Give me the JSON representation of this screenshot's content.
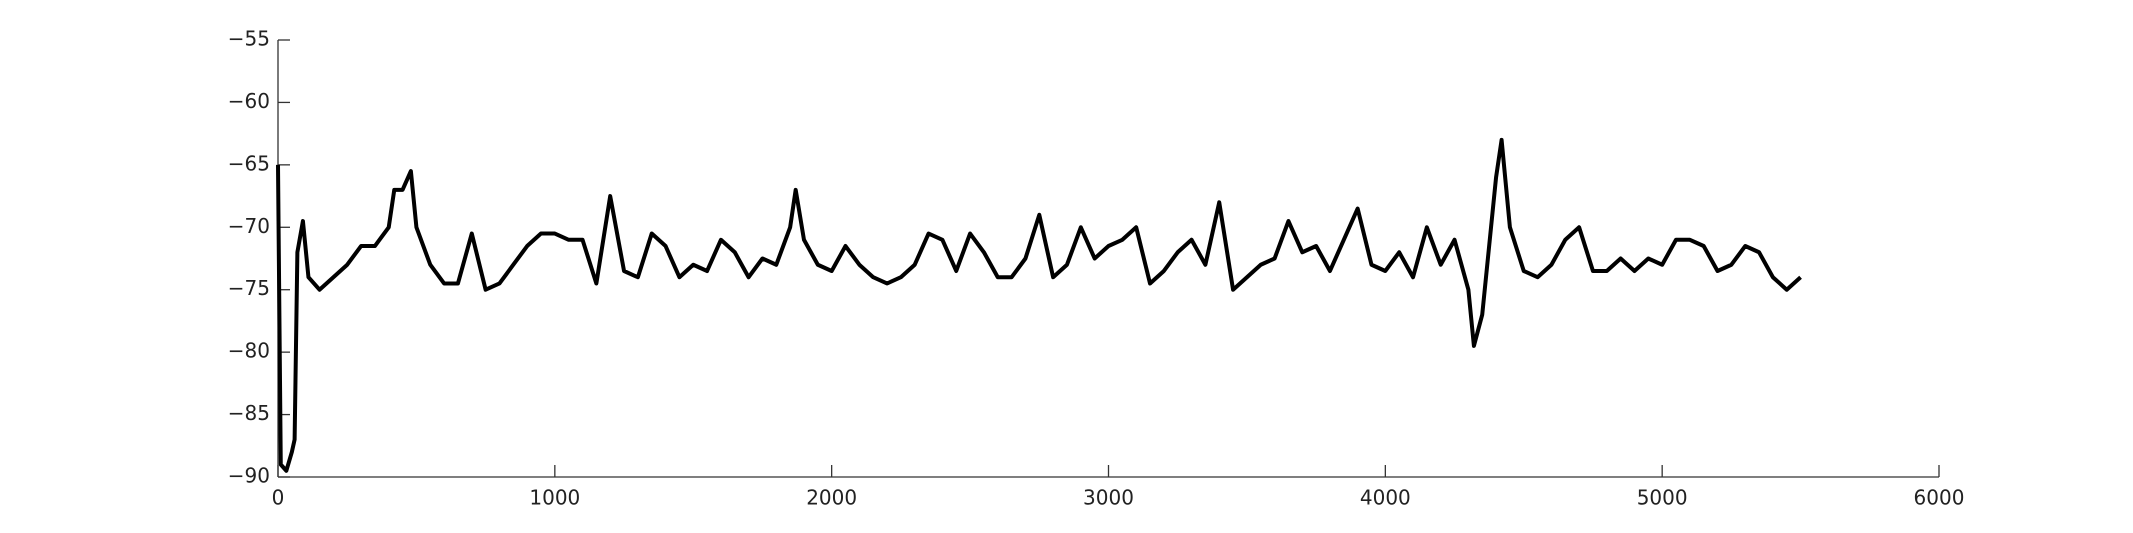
{
  "chart_data": {
    "type": "line",
    "x": [
      0,
      10,
      30,
      50,
      60,
      70,
      90,
      110,
      150,
      200,
      250,
      300,
      350,
      400,
      420,
      450,
      480,
      500,
      550,
      600,
      650,
      700,
      750,
      800,
      850,
      900,
      950,
      1000,
      1050,
      1100,
      1150,
      1200,
      1250,
      1300,
      1350,
      1400,
      1450,
      1500,
      1550,
      1600,
      1650,
      1700,
      1750,
      1800,
      1850,
      1870,
      1900,
      1950,
      2000,
      2050,
      2100,
      2150,
      2200,
      2250,
      2300,
      2350,
      2400,
      2450,
      2500,
      2550,
      2600,
      2650,
      2700,
      2750,
      2800,
      2850,
      2900,
      2950,
      3000,
      3050,
      3100,
      3150,
      3200,
      3250,
      3300,
      3350,
      3400,
      3450,
      3500,
      3550,
      3600,
      3650,
      3700,
      3750,
      3800,
      3850,
      3900,
      3950,
      4000,
      4050,
      4100,
      4150,
      4200,
      4250,
      4300,
      4320,
      4350,
      4400,
      4420,
      4450,
      4500,
      4550,
      4600,
      4650,
      4700,
      4750,
      4800,
      4850,
      4900,
      4950,
      5000,
      5050,
      5100,
      5150,
      5200,
      5250,
      5300,
      5350,
      5400,
      5450,
      5500
    ],
    "series": [
      {
        "color": "#000000",
        "values": [
          -65,
          -89,
          -89.5,
          -88,
          -87,
          -72,
          -69.5,
          -74,
          -75,
          -74,
          -73,
          -71.5,
          -71.5,
          -70,
          -67,
          -67,
          -65.5,
          -70,
          -73,
          -74.5,
          -74.5,
          -70.5,
          -75,
          -74.5,
          -73,
          -71.5,
          -70.5,
          -70.5,
          -71,
          -71,
          -74.5,
          -67.5,
          -73.5,
          -74,
          -70.5,
          -71.5,
          -74,
          -73,
          -73.5,
          -71,
          -72,
          -74,
          -72.5,
          -73,
          -70,
          -67,
          -71,
          -73,
          -73.5,
          -71.5,
          -73,
          -74,
          -74.5,
          -74,
          -73,
          -70.5,
          -71,
          -73.5,
          -70.5,
          -72,
          -74,
          -74,
          -72.5,
          -69,
          -74,
          -73,
          -70,
          -72.5,
          -71.5,
          -71,
          -70,
          -74.5,
          -73.5,
          -72,
          -71,
          -73,
          -68,
          -75,
          -74,
          -73,
          -72.5,
          -69.5,
          -72,
          -71.5,
          -73.5,
          -71,
          -68.5,
          -73,
          -73.5,
          -72,
          -74,
          -70,
          -73,
          -71,
          -75,
          -79.5,
          -77,
          -66,
          -63,
          -70,
          -73.5,
          -74,
          -73,
          -71,
          -70,
          -73.5,
          -73.5,
          -72.5,
          -73.5,
          -72.5,
          -73,
          -71,
          -71,
          -71.5,
          -73.5,
          -73,
          -71.5,
          -72,
          -74,
          -75,
          -74
        ]
      }
    ],
    "xlim": [
      0,
      6000
    ],
    "xticks": [
      0,
      1000,
      2000,
      3000,
      4000,
      5000,
      6000
    ],
    "ylim": [
      -90,
      -55
    ],
    "yticks": [
      {
        "value": -90,
        "label": "−90"
      },
      {
        "value": -85,
        "label": "−85"
      },
      {
        "value": -80,
        "label": "−80"
      },
      {
        "value": -75,
        "label": "−75"
      },
      {
        "value": -70,
        "label": "−70"
      },
      {
        "value": -65,
        "label": "−65"
      },
      {
        "value": -60,
        "label": "−60"
      },
      {
        "value": -55,
        "label": "−55"
      }
    ],
    "grid": false
  }
}
